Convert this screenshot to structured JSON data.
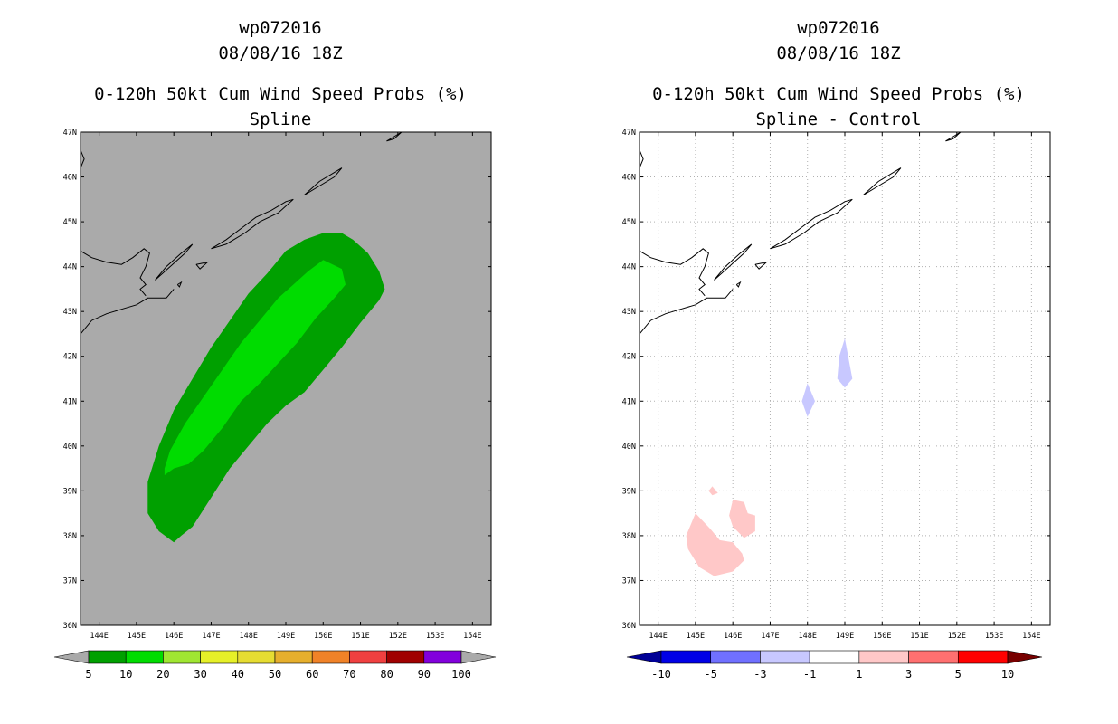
{
  "colors": {
    "land_bg": "#aaaaaa",
    "green_5_10": "#00a000",
    "green_10_20": "#00dc00",
    "diff_blue_light": "#c8c8ff",
    "diff_red_light": "#ffc8c8",
    "grid_dotted": "#b0b0b0",
    "coast": "#000000"
  },
  "chart_data": [
    {
      "type": "heatmap",
      "title_lines": [
        "wp072016",
        "08/08/16 18Z",
        "0-120h 50kt Cum Wind Speed Probs (%)",
        "Spline"
      ],
      "xlabel": "",
      "ylabel": "",
      "xlim": [
        143.5,
        154.5
      ],
      "ylim": [
        36,
        47
      ],
      "x_ticks": [
        144,
        145,
        146,
        147,
        148,
        149,
        150,
        151,
        152,
        153,
        154
      ],
      "x_tick_labels": [
        "144E",
        "145E",
        "146E",
        "147E",
        "148E",
        "149E",
        "150E",
        "151E",
        "152E",
        "153E",
        "154E"
      ],
      "y_ticks": [
        36,
        37,
        38,
        39,
        40,
        41,
        42,
        43,
        44,
        45,
        46,
        47
      ],
      "y_tick_labels": [
        "36N",
        "37N",
        "38N",
        "39N",
        "40N",
        "41N",
        "42N",
        "43N",
        "44N",
        "45N",
        "46N",
        "47N"
      ],
      "grid": false,
      "background": "#aaaaaa",
      "contours": [
        {
          "range": "5-10",
          "color": "#00a000",
          "polygon": [
            [
              146.0,
              37.85
            ],
            [
              146.2,
              38.0
            ],
            [
              146.5,
              38.2
            ],
            [
              147.0,
              38.85
            ],
            [
              147.5,
              39.5
            ],
            [
              148.0,
              40.0
            ],
            [
              148.5,
              40.5
            ],
            [
              149.0,
              40.9
            ],
            [
              149.5,
              41.2
            ],
            [
              150.0,
              41.7
            ],
            [
              150.5,
              42.2
            ],
            [
              151.0,
              42.75
            ],
            [
              151.5,
              43.25
            ],
            [
              151.65,
              43.5
            ],
            [
              151.5,
              43.9
            ],
            [
              151.2,
              44.3
            ],
            [
              150.8,
              44.6
            ],
            [
              150.5,
              44.75
            ],
            [
              150.0,
              44.75
            ],
            [
              149.5,
              44.6
            ],
            [
              149.0,
              44.35
            ],
            [
              148.5,
              43.85
            ],
            [
              148.0,
              43.4
            ],
            [
              147.5,
              42.8
            ],
            [
              147.0,
              42.2
            ],
            [
              146.5,
              41.5
            ],
            [
              146.0,
              40.8
            ],
            [
              145.6,
              40.0
            ],
            [
              145.3,
              39.2
            ],
            [
              145.3,
              38.5
            ],
            [
              145.6,
              38.1
            ]
          ]
        },
        {
          "range": "10-20",
          "color": "#00dc00",
          "polygon": [
            [
              145.75,
              39.35
            ],
            [
              146.0,
              39.5
            ],
            [
              146.4,
              39.6
            ],
            [
              146.8,
              39.9
            ],
            [
              147.3,
              40.4
            ],
            [
              147.8,
              41.0
            ],
            [
              148.3,
              41.4
            ],
            [
              148.8,
              41.85
            ],
            [
              149.3,
              42.3
            ],
            [
              149.8,
              42.85
            ],
            [
              150.3,
              43.3
            ],
            [
              150.6,
              43.6
            ],
            [
              150.5,
              43.95
            ],
            [
              150.0,
              44.15
            ],
            [
              149.6,
              43.9
            ],
            [
              149.2,
              43.6
            ],
            [
              148.8,
              43.3
            ],
            [
              148.3,
              42.8
            ],
            [
              147.8,
              42.3
            ],
            [
              147.3,
              41.7
            ],
            [
              146.8,
              41.1
            ],
            [
              146.3,
              40.5
            ],
            [
              145.9,
              39.9
            ],
            [
              145.75,
              39.5
            ]
          ]
        }
      ],
      "colorbar": {
        "labels": [
          "5",
          "10",
          "20",
          "30",
          "40",
          "50",
          "60",
          "70",
          "80",
          "90",
          "100"
        ],
        "colors": [
          "#00a000",
          "#00dc00",
          "#a0e632",
          "#e6f028",
          "#e6dc32",
          "#e6af2d",
          "#f08228",
          "#f04040",
          "#a00000",
          "#8200dc"
        ],
        "under_color": "#aaaaaa",
        "over_color": "#aaaaaa"
      }
    },
    {
      "type": "heatmap",
      "title_lines": [
        "wp072016",
        "08/08/16 18Z",
        "0-120h 50kt Cum Wind Speed Probs (%)",
        "Spline - Control"
      ],
      "xlabel": "",
      "ylabel": "",
      "xlim": [
        143.5,
        154.5
      ],
      "ylim": [
        36,
        47
      ],
      "x_ticks": [
        144,
        145,
        146,
        147,
        148,
        149,
        150,
        151,
        152,
        153,
        154
      ],
      "x_tick_labels": [
        "144E",
        "145E",
        "146E",
        "147E",
        "148E",
        "149E",
        "150E",
        "151E",
        "152E",
        "153E",
        "154E"
      ],
      "y_ticks": [
        36,
        37,
        38,
        39,
        40,
        41,
        42,
        43,
        44,
        45,
        46,
        47
      ],
      "y_tick_labels": [
        "36N",
        "37N",
        "38N",
        "39N",
        "40N",
        "41N",
        "42N",
        "43N",
        "44N",
        "45N",
        "46N",
        "47N"
      ],
      "grid": true,
      "background": "#ffffff",
      "contours": [
        {
          "range": "-3 to -1",
          "color": "#c8c8ff",
          "polygon": [
            [
              148.0,
              41.4
            ],
            [
              148.2,
              41.0
            ],
            [
              148.0,
              40.65
            ],
            [
              147.85,
              41.0
            ]
          ]
        },
        {
          "range": "-3 to -1",
          "color": "#c8c8ff",
          "polygon": [
            [
              149.0,
              42.4
            ],
            [
              149.2,
              41.5
            ],
            [
              149.0,
              41.3
            ],
            [
              148.8,
              41.5
            ],
            [
              148.85,
              42.0
            ]
          ]
        },
        {
          "range": "1 to 3",
          "color": "#ffc8c8",
          "polygon": [
            [
              145.0,
              38.5
            ],
            [
              145.4,
              38.15
            ],
            [
              145.65,
              37.9
            ],
            [
              146.0,
              37.85
            ],
            [
              146.25,
              37.6
            ],
            [
              146.3,
              37.45
            ],
            [
              146.0,
              37.2
            ],
            [
              145.5,
              37.1
            ],
            [
              145.1,
              37.3
            ],
            [
              144.8,
              37.7
            ],
            [
              144.75,
              38.0
            ]
          ]
        },
        {
          "range": "1 to 3",
          "color": "#ffc8c8",
          "polygon": [
            [
              145.6,
              38.95
            ],
            [
              145.55,
              39.0
            ],
            [
              145.45,
              39.1
            ],
            [
              145.35,
              39.0
            ],
            [
              145.45,
              38.9
            ]
          ]
        },
        {
          "range": "1 to 3",
          "color": "#ffc8c8",
          "polygon": [
            [
              146.4,
              38.5
            ],
            [
              146.6,
              38.45
            ],
            [
              146.6,
              38.1
            ],
            [
              146.3,
              37.95
            ],
            [
              146.0,
              38.2
            ],
            [
              145.9,
              38.45
            ],
            [
              146.0,
              38.8
            ],
            [
              146.3,
              38.75
            ]
          ]
        }
      ],
      "colorbar": {
        "labels": [
          "-10",
          "-5",
          "-3",
          "-1",
          "1",
          "3",
          "5",
          "10"
        ],
        "colors": [
          "#0000e6",
          "#7070ff",
          "#c8c8ff",
          "#ffffff",
          "#ffc8c8",
          "#ff7070",
          "#ff0000"
        ],
        "under_color": "#000096",
        "over_color": "#780000"
      }
    }
  ],
  "coastlines": [
    [
      [
        143.5,
        42.5
      ],
      [
        143.8,
        42.8
      ],
      [
        144.2,
        42.95
      ],
      [
        144.6,
        43.05
      ],
      [
        145.0,
        43.15
      ],
      [
        145.3,
        43.3
      ],
      [
        145.5,
        43.3
      ],
      [
        145.8,
        43.3
      ],
      [
        146.0,
        43.5
      ]
    ],
    [
      [
        143.5,
        44.35
      ],
      [
        143.8,
        44.2
      ],
      [
        144.2,
        44.1
      ],
      [
        144.6,
        44.05
      ],
      [
        144.9,
        44.2
      ],
      [
        145.2,
        44.4
      ],
      [
        145.35,
        44.3
      ],
      [
        145.25,
        44.0
      ],
      [
        145.1,
        43.75
      ],
      [
        145.25,
        43.6
      ],
      [
        145.1,
        43.5
      ],
      [
        145.25,
        43.35
      ]
    ],
    [
      [
        145.5,
        43.7
      ],
      [
        145.9,
        44.0
      ],
      [
        146.3,
        44.3
      ],
      [
        146.5,
        44.5
      ],
      [
        146.2,
        44.3
      ],
      [
        145.8,
        44.0
      ],
      [
        145.5,
        43.7
      ]
    ],
    [
      [
        147.0,
        44.4
      ],
      [
        147.4,
        44.6
      ],
      [
        147.8,
        44.85
      ],
      [
        148.2,
        45.1
      ],
      [
        148.6,
        45.25
      ],
      [
        149.0,
        45.45
      ],
      [
        149.2,
        45.5
      ],
      [
        148.8,
        45.2
      ],
      [
        148.3,
        45.0
      ],
      [
        147.9,
        44.75
      ],
      [
        147.4,
        44.5
      ],
      [
        147.0,
        44.4
      ]
    ],
    [
      [
        146.6,
        44.05
      ],
      [
        146.9,
        44.1
      ],
      [
        146.7,
        43.95
      ],
      [
        146.6,
        44.05
      ]
    ],
    [
      [
        146.1,
        43.6
      ],
      [
        146.2,
        43.65
      ],
      [
        146.15,
        43.55
      ],
      [
        146.1,
        43.6
      ]
    ],
    [
      [
        149.5,
        45.6
      ],
      [
        149.9,
        45.9
      ],
      [
        150.2,
        46.05
      ],
      [
        150.5,
        46.2
      ],
      [
        150.3,
        46.0
      ],
      [
        149.9,
        45.8
      ],
      [
        149.5,
        45.6
      ]
    ],
    [
      [
        151.7,
        46.8
      ],
      [
        151.9,
        46.9
      ],
      [
        152.1,
        47.0
      ],
      [
        151.9,
        46.85
      ],
      [
        151.7,
        46.8
      ]
    ],
    [
      [
        143.5,
        46.6
      ],
      [
        143.6,
        46.4
      ],
      [
        143.5,
        46.2
      ]
    ]
  ]
}
